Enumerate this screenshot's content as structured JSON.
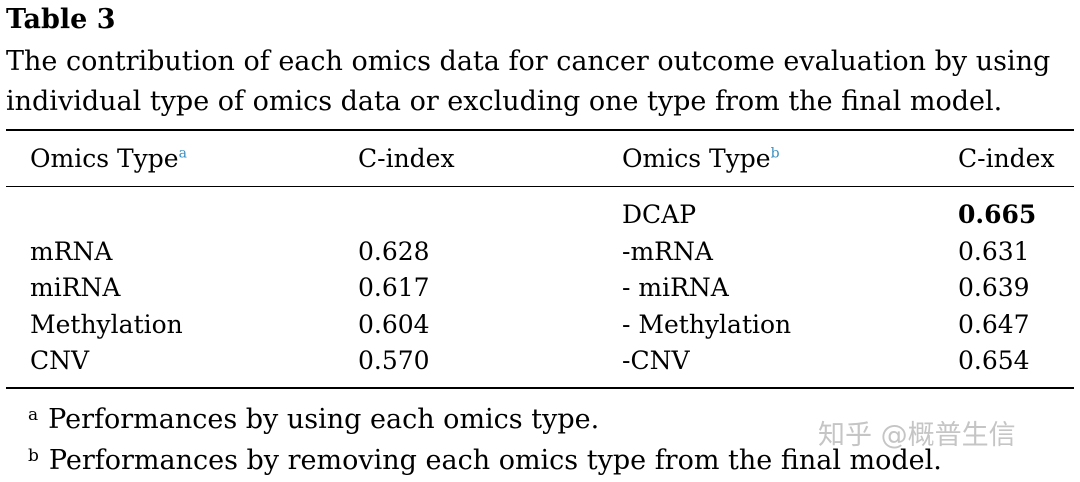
{
  "table": {
    "label": "Table 3",
    "caption_line1": "The contribution of each omics data for cancer outcome evaluation by using",
    "caption_line2": "individual type of omics data or excluding one type from the final model.",
    "headers": {
      "col1": "Omics Type",
      "col1_sup": "a",
      "col2": "C-index",
      "col3": "Omics Type",
      "col3_sup": "b",
      "col4": "C-index"
    },
    "rows": [
      {
        "type_a": "",
        "cindex_a": "",
        "type_b": "DCAP",
        "cindex_b": "0.665"
      },
      {
        "type_a": "mRNA",
        "cindex_a": "0.628",
        "type_b": "-mRNA",
        "cindex_b": "0.631"
      },
      {
        "type_a": "miRNA",
        "cindex_a": "0.617",
        "type_b": "- miRNA",
        "cindex_b": "0.639"
      },
      {
        "type_a": "Methylation",
        "cindex_a": "0.604",
        "type_b": "- Methylation",
        "cindex_b": "0.647"
      },
      {
        "type_a": "CNV",
        "cindex_a": "0.570",
        "type_b": "-CNV",
        "cindex_b": "0.654"
      }
    ],
    "footnotes": [
      {
        "mark": "a",
        "text": "Performances by using each omics type."
      },
      {
        "mark": "b",
        "text": "Performances by removing each omics type from the final model."
      }
    ]
  },
  "watermark": "知乎 @概普生信",
  "colors": {
    "superscript": "#3a8fc0",
    "text": "#000000",
    "watermark": "#969696"
  }
}
